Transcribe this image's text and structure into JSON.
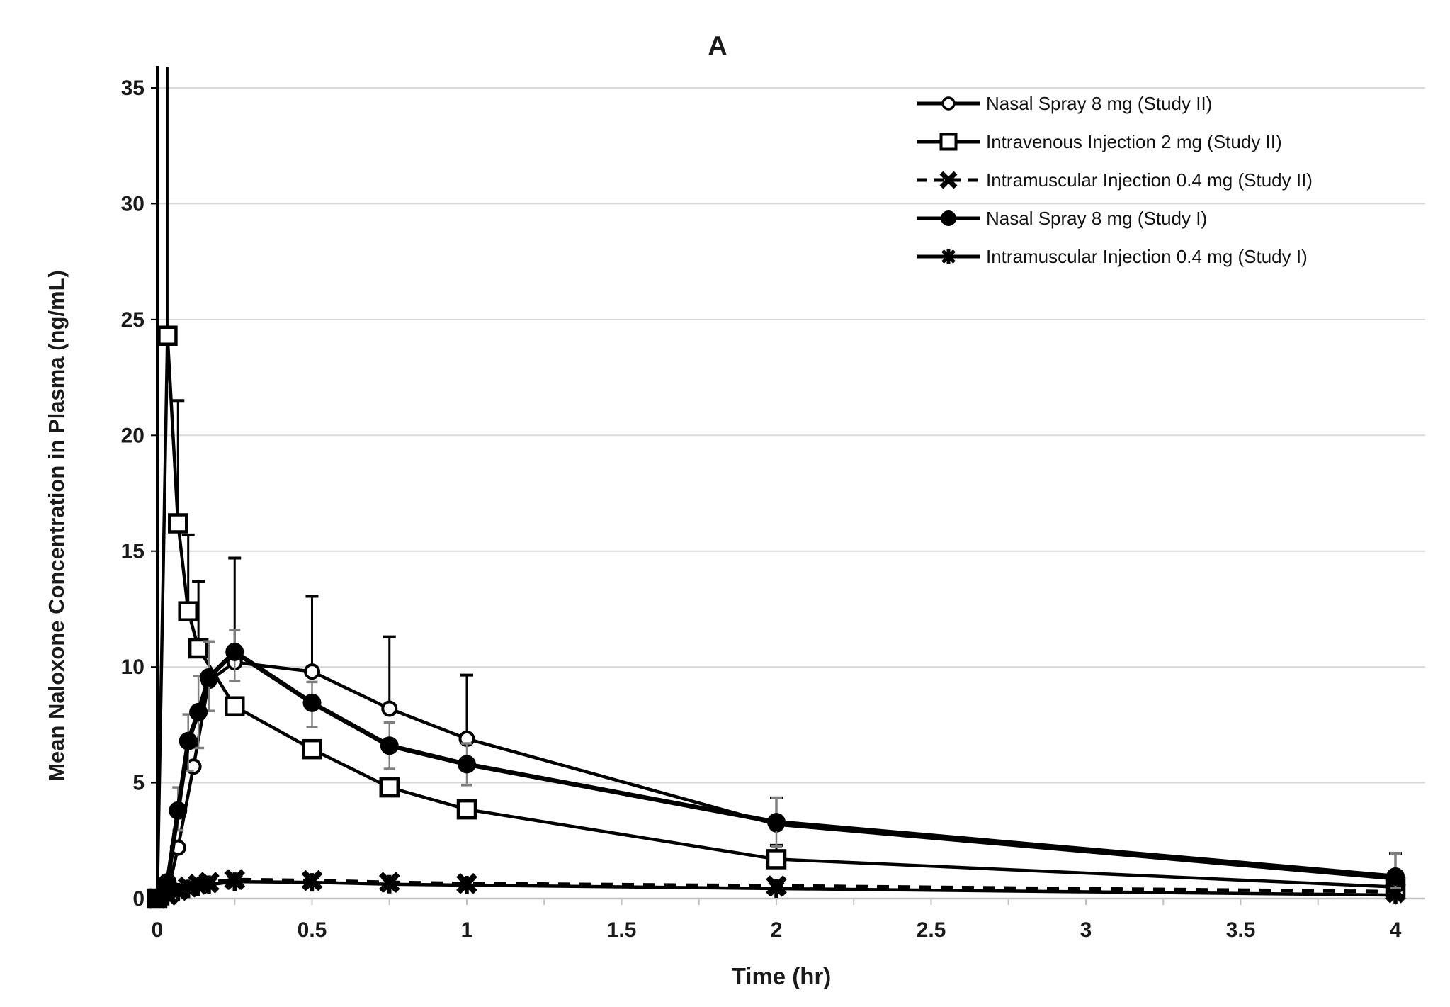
{
  "figure": {
    "panel_label": "A",
    "x_axis_title": "Time (hr)",
    "y_axis_title": "Mean Naloxone Concentration in Plasma (ng/mL)"
  },
  "chart_data": {
    "type": "line",
    "title": "A",
    "xlabel": "Time (hr)",
    "ylabel": "Mean Naloxone Concentration in Plasma (ng/mL)",
    "xlim": [
      0,
      4
    ],
    "ylim": [
      0,
      35
    ],
    "x_tick_labels": [
      "0",
      "0.5",
      "1",
      "1.5",
      "2",
      "2.5",
      "3",
      "3.5",
      "4"
    ],
    "x_tick_values": [
      0,
      0.5,
      1,
      1.5,
      2,
      2.5,
      3,
      3.5,
      4
    ],
    "x_minor_tick_step": 0.25,
    "y_tick_labels": [
      "0",
      "5",
      "10",
      "15",
      "20",
      "25",
      "30",
      "35"
    ],
    "y_tick_values": [
      0,
      5,
      10,
      15,
      20,
      25,
      30,
      35
    ],
    "grid": "horizontal-only",
    "legend_position": "top-right-inside",
    "colors": {
      "series": "#000000",
      "grid": "#d9d9d9",
      "x_axis_line": "#bfbfbf",
      "error_bars_study2": "#000000",
      "error_bars_study1": "#7f7f7f"
    },
    "series": [
      {
        "name": "Nasal Spray 8 mg (Study II)",
        "marker": "open-circle",
        "line_style": "solid",
        "x": [
          0,
          0.033,
          0.067,
          0.117,
          0.167,
          0.25,
          0.5,
          0.75,
          1,
          2,
          4
        ],
        "y": [
          0,
          0.2,
          2.2,
          5.7,
          9.4,
          10.2,
          9.8,
          8.2,
          6.9,
          3.2,
          0.85
        ],
        "err_up": [
          null,
          null,
          null,
          null,
          null,
          4.5,
          3.25,
          3.1,
          2.75,
          1.15,
          1.1
        ],
        "err_down": null,
        "err_color": "#000000"
      },
      {
        "name": "Intravenous Injection 2 mg (Study II)",
        "marker": "open-square",
        "line_style": "solid",
        "x": [
          0,
          0.033,
          0.067,
          0.1,
          0.133,
          0.25,
          0.5,
          0.75,
          1,
          2,
          4
        ],
        "y": [
          0,
          24.3,
          16.2,
          12.4,
          10.8,
          8.3,
          6.45,
          4.8,
          3.85,
          1.7,
          0.5
        ],
        "err_up": [
          null,
          11.5,
          5.3,
          3.3,
          2.9,
          null,
          null,
          null,
          null,
          0.6,
          null
        ],
        "err_down": null,
        "err_color": "#000000"
      },
      {
        "name": "Intramuscular Injection 0.4 mg (Study II)",
        "marker": "bold-x",
        "line_style": "dashed",
        "x": [
          0,
          0.033,
          0.067,
          0.1,
          0.133,
          0.167,
          0.25,
          0.5,
          0.75,
          1,
          2,
          4
        ],
        "y": [
          0,
          0.15,
          0.35,
          0.5,
          0.62,
          0.7,
          0.82,
          0.78,
          0.7,
          0.65,
          0.55,
          0.3
        ],
        "err_up": null,
        "err_down": null,
        "err_color": "#000000"
      },
      {
        "name": "Nasal Spray 8 mg (Study I)",
        "marker": "filled-circle",
        "line_style": "solid",
        "x": [
          0,
          0.033,
          0.067,
          0.1,
          0.133,
          0.167,
          0.25,
          0.5,
          0.75,
          1,
          2,
          4
        ],
        "y": [
          0,
          0.7,
          3.8,
          6.8,
          8.05,
          9.55,
          10.65,
          8.45,
          6.6,
          5.8,
          3.3,
          0.95
        ],
        "err_up": [
          null,
          null,
          1.0,
          1.15,
          1.55,
          1.55,
          0.95,
          0.9,
          1.0,
          0.9,
          1.05,
          1.0
        ],
        "err_down": [
          null,
          null,
          0.85,
          1.3,
          1.55,
          1.45,
          1.25,
          1.05,
          1.0,
          0.9,
          1.05,
          0.5
        ],
        "err_color": "#7f7f7f"
      },
      {
        "name": "Intramuscular Injection 0.4 mg (Study I)",
        "marker": "asterisk",
        "line_style": "solid",
        "x": [
          0,
          0.033,
          0.067,
          0.1,
          0.133,
          0.167,
          0.25,
          0.5,
          0.75,
          1,
          2,
          4
        ],
        "y": [
          0,
          0.1,
          0.28,
          0.42,
          0.52,
          0.6,
          0.73,
          0.7,
          0.62,
          0.58,
          0.43,
          0.15
        ],
        "err_up": null,
        "err_down": null,
        "err_color": "#7f7f7f"
      }
    ]
  }
}
